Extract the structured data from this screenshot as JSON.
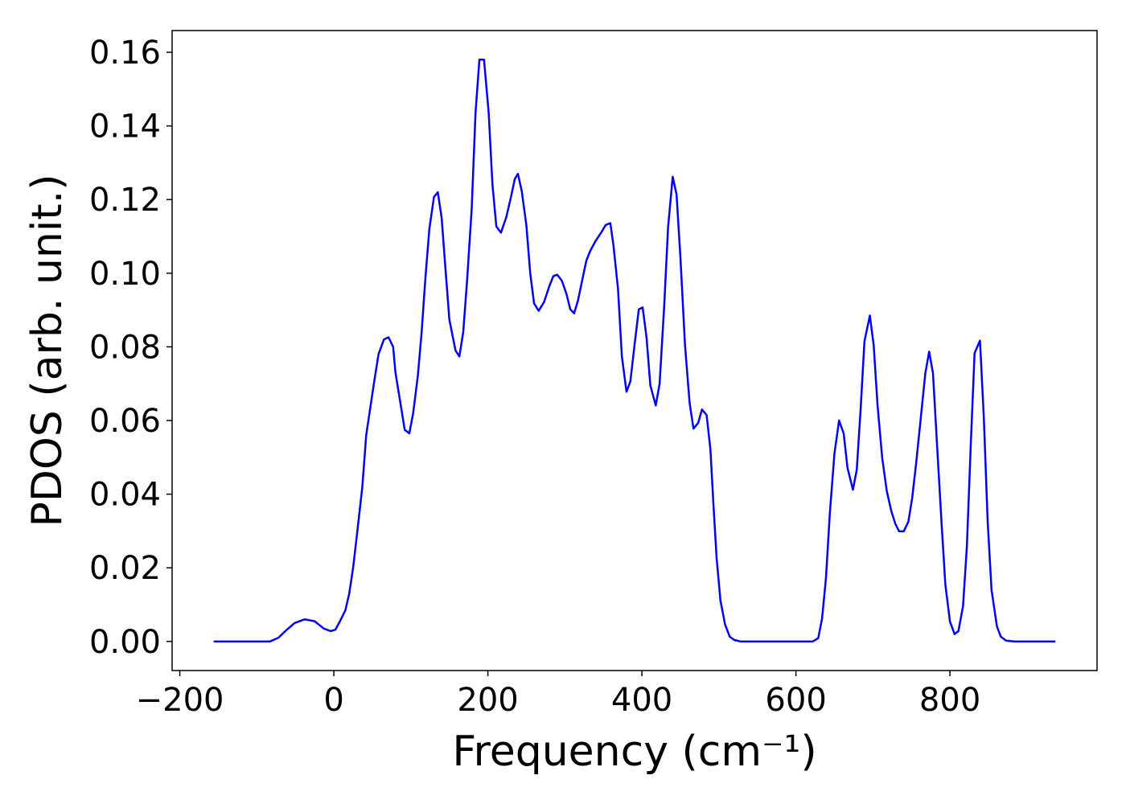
{
  "chart_data": {
    "type": "line",
    "xlabel": "Frequency (cm⁻¹)",
    "ylabel": "PDOS (arb. unit.)",
    "xlim": [
      -210,
      991
    ],
    "ylim": [
      -0.0079,
      0.1659
    ],
    "xticks": [
      {
        "value": -200,
        "label": "−200"
      },
      0,
      200,
      400,
      600,
      800
    ],
    "yticks": [
      {
        "value": 0,
        "label": "0.00"
      },
      0.02,
      0.04,
      0.06,
      0.08,
      {
        "value": 0.1,
        "label": "0.10"
      },
      0.12,
      0.14,
      0.16
    ],
    "grid": false,
    "series": [
      {
        "color": "#0000ff",
        "x": [
          -156,
          -83,
          -72,
          -62,
          -51,
          -38,
          -25,
          -13,
          -4,
          2,
          8,
          15,
          20,
          25,
          30,
          37,
          42,
          52,
          58,
          65,
          71,
          77,
          80,
          87,
          92,
          98,
          103,
          109,
          114,
          119,
          124,
          130,
          135,
          140,
          145,
          150,
          158,
          163,
          168,
          173,
          179,
          184,
          189,
          195,
          201,
          206,
          211,
          217,
          224,
          230,
          235,
          239,
          244,
          250,
          255,
          260,
          266,
          273,
          280,
          285,
          290,
          296,
          302,
          307,
          312,
          317,
          324,
          328,
          333,
          340,
          347,
          353,
          359,
          363,
          369,
          374,
          380,
          385,
          391,
          396,
          401,
          406,
          411,
          418,
          423,
          429,
          434,
          440,
          445,
          450,
          456,
          462,
          467,
          473,
          478,
          484,
          489,
          493,
          497,
          502,
          508,
          514,
          520,
          528,
          622,
          629,
          634,
          639,
          644,
          650,
          656,
          662,
          667,
          674,
          679,
          684,
          689,
          696,
          701,
          706,
          712,
          718,
          724,
          729,
          734,
          740,
          746,
          751,
          756,
          762,
          768,
          773,
          778,
          783,
          789,
          794,
          800,
          806,
          811,
          817,
          822,
          827,
          832,
          839,
          844,
          849,
          854,
          861,
          866,
          873,
          884,
          937
        ],
        "values": [
          0,
          0,
          0.001,
          0.003,
          0.005,
          0.006,
          0.0055,
          0.0035,
          0.0028,
          0.0032,
          0.0055,
          0.0085,
          0.013,
          0.02,
          0.029,
          0.042,
          0.056,
          0.07,
          0.078,
          0.082,
          0.0826,
          0.08,
          0.073,
          0.064,
          0.0575,
          0.0565,
          0.062,
          0.072,
          0.084,
          0.099,
          0.112,
          0.1207,
          0.122,
          0.115,
          0.101,
          0.0874,
          0.079,
          0.0774,
          0.084,
          0.098,
          0.1175,
          0.1437,
          0.158,
          0.158,
          0.1437,
          0.124,
          0.1127,
          0.111,
          0.1153,
          0.1207,
          0.1256,
          0.127,
          0.1223,
          0.113,
          0.1,
          0.0918,
          0.0898,
          0.0922,
          0.0966,
          0.0992,
          0.0996,
          0.098,
          0.0944,
          0.0902,
          0.0891,
          0.0926,
          0.0996,
          0.1035,
          0.1061,
          0.1088,
          0.111,
          0.1131,
          0.1136,
          0.1077,
          0.0957,
          0.0774,
          0.0678,
          0.0706,
          0.0815,
          0.0902,
          0.0907,
          0.0826,
          0.0695,
          0.0641,
          0.07,
          0.0913,
          0.1125,
          0.1262,
          0.1214,
          0.1044,
          0.0804,
          0.0647,
          0.0578,
          0.0593,
          0.063,
          0.0615,
          0.0521,
          0.0368,
          0.0227,
          0.0111,
          0.0046,
          0.0013,
          0.0004,
          0,
          0,
          0.0009,
          0.0063,
          0.0172,
          0.0347,
          0.051,
          0.06,
          0.0565,
          0.0471,
          0.0412,
          0.0466,
          0.063,
          0.0815,
          0.0885,
          0.0804,
          0.0641,
          0.0499,
          0.0408,
          0.0353,
          0.032,
          0.0299,
          0.0299,
          0.0325,
          0.039,
          0.0482,
          0.0604,
          0.0728,
          0.0787,
          0.0728,
          0.0543,
          0.0325,
          0.0155,
          0.0054,
          0.002,
          0.0028,
          0.0096,
          0.0259,
          0.0532,
          0.0783,
          0.0817,
          0.0608,
          0.0325,
          0.014,
          0.0041,
          0.0013,
          0.0002,
          0,
          0
        ]
      }
    ]
  }
}
